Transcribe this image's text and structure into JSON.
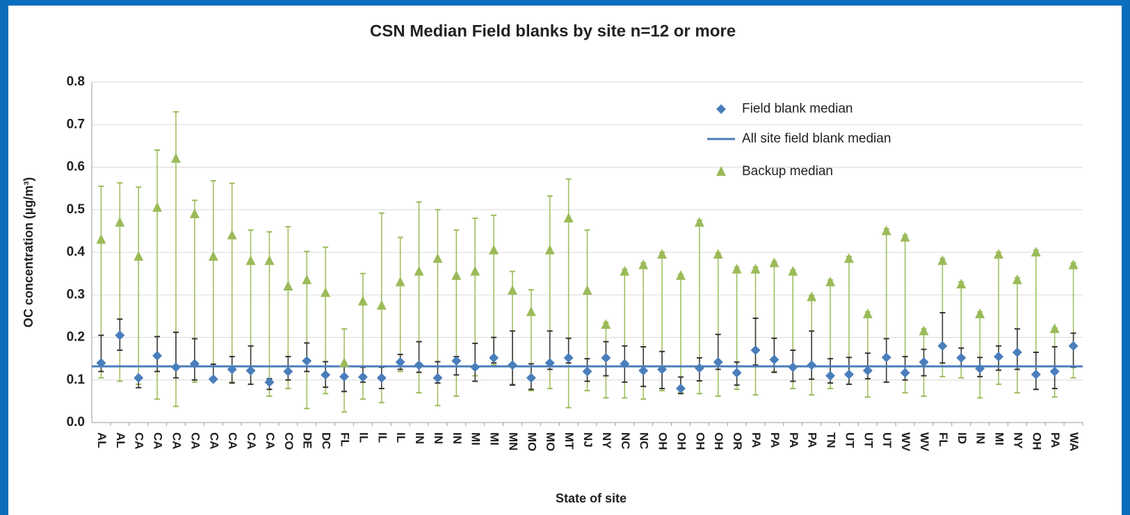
{
  "chart_data": {
    "type": "errorbar-scatter",
    "title": "CSN Median Field blanks by site n=12 or more",
    "x_label": "State of site",
    "y_label": "OC concentration (µg/m³)",
    "categories": [
      "AL",
      "AL",
      "CA",
      "CA",
      "CA",
      "CA",
      "CA",
      "CA",
      "CA",
      "CA",
      "CO",
      "DE",
      "DC",
      "FL",
      "IL",
      "IL",
      "IL",
      "IN",
      "IN",
      "IN",
      "MI",
      "MI",
      "MN",
      "MO",
      "MO",
      "MT",
      "NJ",
      "NY",
      "NC",
      "NC",
      "OH",
      "OH",
      "OH",
      "OH",
      "OR",
      "PA",
      "PA",
      "PA",
      "PA",
      "TN",
      "UT",
      "UT",
      "UT",
      "WV",
      "WV",
      "FL",
      "ID",
      "IN",
      "MI",
      "NY",
      "OH",
      "PA",
      "WA"
    ],
    "ylim": [
      0,
      0.8
    ],
    "yticks": [
      {
        "value": 0,
        "label": "0.0"
      },
      0.1,
      0.2,
      0.3,
      0.4,
      0.5,
      0.6,
      0.7,
      0.8
    ],
    "grid": true,
    "series": [
      {
        "name": "Backup median",
        "color": "#9bbb59",
        "marker": "triangle",
        "values": [
          0.43,
          0.47,
          0.39,
          0.505,
          0.62,
          0.49,
          0.39,
          0.44,
          0.38,
          0.38,
          0.32,
          0.335,
          0.305,
          0.14,
          0.285,
          0.275,
          0.33,
          0.355,
          0.385,
          0.345,
          0.355,
          0.405,
          0.31,
          0.26,
          0.405,
          0.48,
          0.31,
          0.23,
          0.355,
          0.37,
          0.395,
          0.345,
          0.47,
          0.395,
          0.36,
          0.36,
          0.375,
          0.355,
          0.295,
          0.33,
          0.385,
          0.255,
          0.45,
          0.435,
          0.215,
          0.38,
          0.325,
          0.255,
          0.395,
          0.335,
          0.4,
          0.22,
          0.37
        ],
        "low": [
          0.105,
          0.097,
          0.09,
          0.055,
          0.038,
          0.095,
          0.1,
          0.095,
          0.09,
          0.062,
          0.08,
          0.033,
          0.068,
          0.025,
          0.055,
          0.047,
          0.12,
          0.07,
          0.04,
          0.062,
          0.11,
          0.135,
          0.09,
          0.075,
          0.08,
          0.035,
          0.075,
          0.058,
          0.058,
          0.055,
          0.075,
          0.07,
          0.068,
          0.062,
          0.078,
          0.065,
          0.12,
          0.08,
          0.065,
          0.08,
          0.09,
          0.06,
          0.095,
          0.07,
          0.062,
          0.108,
          0.105,
          0.058,
          0.09,
          0.07,
          0.078,
          0.06,
          0.105
        ],
        "high": [
          0.555,
          0.563,
          0.553,
          0.64,
          0.73,
          0.522,
          0.568,
          0.562,
          0.452,
          0.448,
          0.46,
          0.402,
          0.412,
          0.22,
          0.35,
          0.492,
          0.435,
          0.518,
          0.5,
          0.452,
          0.48,
          0.487,
          0.355,
          0.312,
          0.532,
          0.572,
          0.452,
          0.235,
          0.36,
          0.375,
          0.4,
          0.348,
          0.475,
          0.398,
          0.365,
          0.365,
          0.378,
          0.358,
          0.298,
          0.335,
          0.39,
          0.26,
          0.455,
          0.44,
          0.22,
          0.385,
          0.33,
          0.26,
          0.4,
          0.34,
          0.405,
          0.222,
          0.375
        ]
      },
      {
        "name": "Field blank median",
        "color": "#4a7ebb",
        "marker": "diamond",
        "values": [
          0.14,
          0.205,
          0.105,
          0.157,
          0.13,
          0.138,
          0.102,
          0.125,
          0.122,
          0.095,
          0.12,
          0.145,
          0.112,
          0.108,
          0.107,
          0.105,
          0.142,
          0.135,
          0.105,
          0.145,
          0.13,
          0.152,
          0.135,
          0.105,
          0.14,
          0.152,
          0.12,
          0.152,
          0.138,
          0.122,
          0.125,
          0.08,
          0.128,
          0.142,
          0.117,
          0.17,
          0.148,
          0.13,
          0.135,
          0.11,
          0.113,
          0.122,
          0.153,
          0.117,
          0.142,
          0.18,
          0.152,
          0.127,
          0.155,
          0.165,
          0.113,
          0.12,
          0.18
        ],
        "low": [
          0.12,
          0.17,
          0.082,
          0.12,
          0.105,
          0.1,
          0.098,
          0.093,
          0.09,
          0.078,
          0.1,
          0.12,
          0.083,
          0.073,
          0.095,
          0.08,
          0.125,
          0.118,
          0.093,
          0.112,
          0.097,
          0.14,
          0.088,
          0.078,
          0.125,
          0.14,
          0.097,
          0.11,
          0.095,
          0.085,
          0.08,
          0.068,
          0.098,
          0.125,
          0.088,
          0.135,
          0.118,
          0.097,
          0.102,
          0.093,
          0.09,
          0.103,
          0.095,
          0.1,
          0.11,
          0.14,
          0.133,
          0.108,
          0.123,
          0.125,
          0.078,
          0.08,
          0.13
        ],
        "high": [
          0.205,
          0.243,
          0.108,
          0.202,
          0.212,
          0.197,
          0.137,
          0.155,
          0.18,
          0.103,
          0.155,
          0.187,
          0.143,
          0.14,
          0.13,
          0.13,
          0.16,
          0.19,
          0.143,
          0.155,
          0.186,
          0.2,
          0.215,
          0.138,
          0.215,
          0.198,
          0.15,
          0.19,
          0.18,
          0.178,
          0.167,
          0.107,
          0.152,
          0.207,
          0.142,
          0.245,
          0.198,
          0.17,
          0.215,
          0.15,
          0.153,
          0.163,
          0.197,
          0.155,
          0.172,
          0.258,
          0.175,
          0.153,
          0.18,
          0.22,
          0.165,
          0.178,
          0.21
        ]
      }
    ],
    "reference_line": {
      "name": "All site field blank median",
      "value": 0.132,
      "color": "#4a7ebb"
    }
  }
}
